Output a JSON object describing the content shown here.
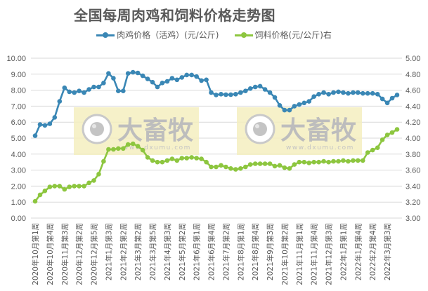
{
  "chart_data": {
    "type": "line",
    "title": "全国每周肉鸡和饲料价格走势图",
    "xlabel": "",
    "ylabel": "",
    "y_left": {
      "min": 0,
      "max": 10,
      "step": 1,
      "ticks": [
        "0.00",
        "1.00",
        "2.00",
        "3.00",
        "4.00",
        "5.00",
        "6.00",
        "7.00",
        "8.00",
        "9.00",
        "10.00"
      ]
    },
    "y_right": {
      "min": 3.0,
      "max": 5.0,
      "step": 0.2,
      "ticks": [
        "3.00",
        "3.20",
        "3.40",
        "3.60",
        "3.80",
        "4.00",
        "4.20",
        "4.40",
        "4.60",
        "4.80",
        "5.00"
      ]
    },
    "grid": true,
    "legend_position": "top",
    "x_tick_labels": [
      "2020年10月第1周",
      "2020年10月第4周",
      "2020年11月第3周",
      "2020年12月第2周",
      "2020年12月第5周",
      "2021年1月第3周",
      "2021年2月第2周",
      "2021年3月第2周",
      "2021年3月第5周",
      "2021年4月第3周",
      "2021年5月第2周",
      "2021年6月第1周",
      "2021年6月第4周",
      "2021年7月第2周",
      "2021年8月第1周",
      "2021年8月第4周",
      "2021年9月第3周",
      "2021年10月第2周",
      "2021年11月第1周",
      "2021年11月第4周",
      "2021年12月第3周",
      "2022年1月第1周",
      "2022年1月第4周",
      "2022年2月第4周",
      "2022年3月第3周"
    ],
    "x_tick_every": 3,
    "series": [
      {
        "name": "肉鸡价格（活鸡）(元/公斤)",
        "axis": "left",
        "color": "#3a87b5",
        "values": [
          5.15,
          5.85,
          5.8,
          5.9,
          6.3,
          7.3,
          8.15,
          7.9,
          7.85,
          7.95,
          7.85,
          8.05,
          8.2,
          8.2,
          8.45,
          9.05,
          8.75,
          7.95,
          7.95,
          9.05,
          9.12,
          9.08,
          8.9,
          8.7,
          8.5,
          8.2,
          8.45,
          8.55,
          8.75,
          8.65,
          8.8,
          8.95,
          8.95,
          8.85,
          8.6,
          8.65,
          7.85,
          7.7,
          7.75,
          7.72,
          7.72,
          7.75,
          7.85,
          7.95,
          8.1,
          8.2,
          8.25,
          8.05,
          7.85,
          7.55,
          7.05,
          6.75,
          6.75,
          7.0,
          7.1,
          7.2,
          7.3,
          7.6,
          7.75,
          7.85,
          7.75,
          7.85,
          7.9,
          7.85,
          7.8,
          7.85,
          7.85,
          7.8,
          7.8,
          7.8,
          7.75,
          7.45,
          7.2,
          7.5,
          7.7
        ]
      },
      {
        "name": "饲料价格(元/公斤)右",
        "axis": "right",
        "color": "#8dc63f",
        "values": [
          3.21,
          3.29,
          3.34,
          3.39,
          3.4,
          3.4,
          3.36,
          3.39,
          3.4,
          3.4,
          3.4,
          3.44,
          3.47,
          3.55,
          3.71,
          3.86,
          3.86,
          3.87,
          3.87,
          3.92,
          3.93,
          3.9,
          3.85,
          3.76,
          3.72,
          3.7,
          3.7,
          3.72,
          3.74,
          3.72,
          3.75,
          3.75,
          3.76,
          3.75,
          3.74,
          3.7,
          3.64,
          3.64,
          3.66,
          3.64,
          3.62,
          3.61,
          3.62,
          3.64,
          3.67,
          3.68,
          3.68,
          3.68,
          3.68,
          3.65,
          3.66,
          3.63,
          3.62,
          3.67,
          3.7,
          3.7,
          3.69,
          3.7,
          3.7,
          3.71,
          3.7,
          3.71,
          3.71,
          3.72,
          3.71,
          3.72,
          3.72,
          3.72,
          3.82,
          3.85,
          3.88,
          3.98,
          4.04,
          4.07,
          4.11
        ]
      }
    ]
  },
  "watermark": {
    "brand": "大畜牧",
    "url": "www.dxumu.com"
  },
  "legend": [
    {
      "label": "肉鸡价格（活鸡）(元/公斤)",
      "color": "#3a87b5"
    },
    {
      "label": "饲料价格(元/公斤)右",
      "color": "#8dc63f"
    }
  ]
}
